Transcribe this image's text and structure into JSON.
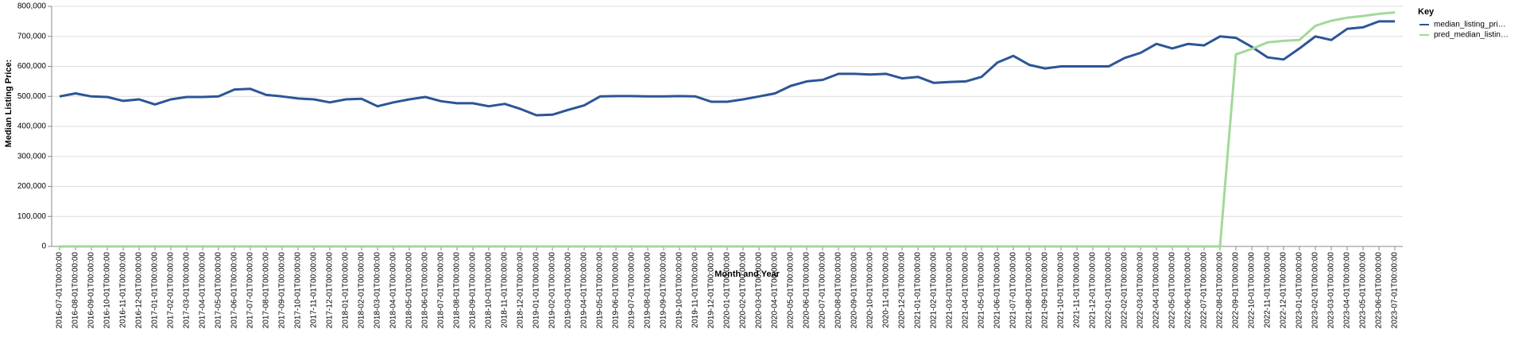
{
  "chart_data": {
    "type": "line",
    "x_label": "Month and Year",
    "y_label": "Median Listing Price:",
    "legend_title": "Key",
    "categories": [
      "2016-07-01T00:00:00",
      "2016-08-01T00:00:00",
      "2016-09-01T00:00:00",
      "2016-10-01T00:00:00",
      "2016-11-01T00:00:00",
      "2016-12-01T00:00:00",
      "2017-01-01T00:00:00",
      "2017-02-01T00:00:00",
      "2017-03-01T00:00:00",
      "2017-04-01T00:00:00",
      "2017-05-01T00:00:00",
      "2017-06-01T00:00:00",
      "2017-07-01T00:00:00",
      "2017-08-01T00:00:00",
      "2017-09-01T00:00:00",
      "2017-10-01T00:00:00",
      "2017-11-01T00:00:00",
      "2017-12-01T00:00:00",
      "2018-01-01T00:00:00",
      "2018-02-01T00:00:00",
      "2018-03-01T00:00:00",
      "2018-04-01T00:00:00",
      "2018-05-01T00:00:00",
      "2018-06-01T00:00:00",
      "2018-07-01T00:00:00",
      "2018-08-01T00:00:00",
      "2018-09-01T00:00:00",
      "2018-10-01T00:00:00",
      "2018-11-01T00:00:00",
      "2018-12-01T00:00:00",
      "2019-01-01T00:00:00",
      "2019-02-01T00:00:00",
      "2019-03-01T00:00:00",
      "2019-04-01T00:00:00",
      "2019-05-01T00:00:00",
      "2019-06-01T00:00:00",
      "2019-07-01T00:00:00",
      "2019-08-01T00:00:00",
      "2019-09-01T00:00:00",
      "2019-10-01T00:00:00",
      "2019-11-01T00:00:00",
      "2019-12-01T00:00:00",
      "2020-01-01T00:00:00",
      "2020-02-01T00:00:00",
      "2020-03-01T00:00:00",
      "2020-04-01T00:00:00",
      "2020-05-01T00:00:00",
      "2020-06-01T00:00:00",
      "2020-07-01T00:00:00",
      "2020-08-01T00:00:00",
      "2020-09-01T00:00:00",
      "2020-10-01T00:00:00",
      "2020-11-01T00:00:00",
      "2020-12-01T00:00:00",
      "2021-01-01T00:00:00",
      "2021-02-01T00:00:00",
      "2021-03-01T00:00:00",
      "2021-04-01T00:00:00",
      "2021-05-01T00:00:00",
      "2021-06-01T00:00:00",
      "2021-07-01T00:00:00",
      "2021-08-01T00:00:00",
      "2021-09-01T00:00:00",
      "2021-10-01T00:00:00",
      "2021-11-01T00:00:00",
      "2021-12-01T00:00:00",
      "2022-01-01T00:00:00",
      "2022-02-01T00:00:00",
      "2022-03-01T00:00:00",
      "2022-04-01T00:00:00",
      "2022-05-01T00:00:00",
      "2022-06-01T00:00:00",
      "2022-07-01T00:00:00",
      "2022-08-01T00:00:00",
      "2022-09-01T00:00:00",
      "2022-10-01T00:00:00",
      "2022-11-01T00:00:00",
      "2022-12-01T00:00:00",
      "2023-01-01T00:00:00",
      "2023-02-01T00:00:00",
      "2023-03-01T00:00:00",
      "2023-04-01T00:00:00",
      "2023-05-01T00:00:00",
      "2023-06-01T00:00:00",
      "2023-07-01T00:00:00"
    ],
    "series": [
      {
        "name": "median_listing_pri…",
        "color": "#2b5597",
        "values": [
          500000,
          510000,
          500000,
          498000,
          485000,
          490000,
          473000,
          490000,
          498000,
          498000,
          500000,
          523000,
          525000,
          505000,
          500000,
          493000,
          490000,
          480000,
          490000,
          492000,
          467000,
          480000,
          490000,
          498000,
          484000,
          477000,
          477000,
          467000,
          475000,
          458000,
          437000,
          439000,
          455000,
          470000,
          500000,
          501000,
          501000,
          500000,
          500000,
          501000,
          500000,
          482000,
          482000,
          490000,
          500000,
          510000,
          535000,
          550000,
          555000,
          575000,
          575000,
          573000,
          575000,
          560000,
          565000,
          545000,
          548000,
          550000,
          565000,
          613000,
          635000,
          605000,
          593000,
          600000,
          600000,
          600000,
          600000,
          628000,
          645000,
          675000,
          660000,
          675000,
          670000,
          700000,
          695000,
          665000,
          630000,
          623000,
          660000,
          700000,
          688000,
          725000,
          730000,
          750000,
          750000
        ]
      },
      {
        "name": "pred_median_listin…",
        "color": "#a3d89a",
        "values": [
          0,
          0,
          0,
          0,
          0,
          0,
          0,
          0,
          0,
          0,
          0,
          0,
          0,
          0,
          0,
          0,
          0,
          0,
          0,
          0,
          0,
          0,
          0,
          0,
          0,
          0,
          0,
          0,
          0,
          0,
          0,
          0,
          0,
          0,
          0,
          0,
          0,
          0,
          0,
          0,
          0,
          0,
          0,
          0,
          0,
          0,
          0,
          0,
          0,
          0,
          0,
          0,
          0,
          0,
          0,
          0,
          0,
          0,
          0,
          0,
          0,
          0,
          0,
          0,
          0,
          0,
          0,
          0,
          0,
          0,
          0,
          0,
          0,
          0,
          640000,
          658000,
          680000,
          685000,
          688000,
          735000,
          752000,
          762000,
          768000,
          775000,
          780000
        ]
      }
    ],
    "ylim": [
      0,
      800000
    ],
    "yticks": [
      0,
      {
        "value": 100000,
        "label": "100,000"
      },
      {
        "value": 200000,
        "label": "200,000"
      },
      {
        "value": 300000,
        "label": "300,000"
      },
      {
        "value": 400000,
        "label": "400,000"
      },
      {
        "value": 500000,
        "label": "500,000"
      },
      {
        "value": 600000,
        "label": "600,000"
      },
      {
        "value": 700000,
        "label": "700,000"
      },
      {
        "value": 800000,
        "label": "800,000"
      }
    ],
    "grid": true,
    "legend": "right"
  }
}
